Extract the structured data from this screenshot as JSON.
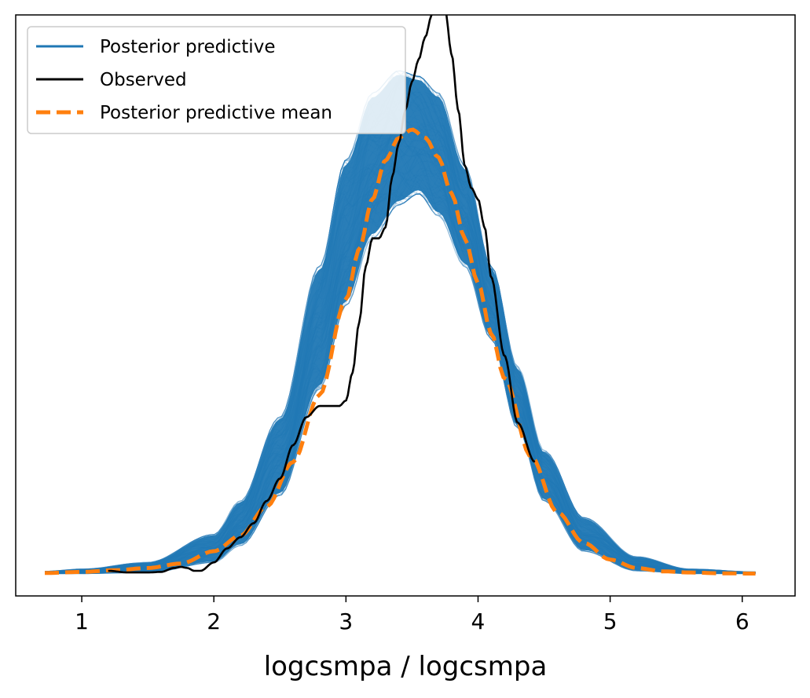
{
  "chart_data": {
    "type": "line",
    "title": "",
    "xlabel": "logcsmpa / logcsmpa",
    "ylabel": "",
    "xlim": [
      0.5,
      6.4
    ],
    "ylim": [
      -0.04,
      1.0
    ],
    "xticks": [
      "1",
      "2",
      "3",
      "4",
      "5",
      "6"
    ],
    "xtick_values": [
      1,
      2,
      3,
      4,
      5,
      6
    ],
    "yticks_visible": false,
    "grid": false,
    "legend_position": "top-left",
    "series": [
      {
        "name": "Posterior predictive",
        "color": "#1f77b4",
        "style": "many semi-transparent sample curves",
        "sample_count": 100,
        "envelope": {
          "x": [
            0.72,
            1.0,
            1.5,
            2.0,
            2.2,
            2.5,
            2.8,
            3.0,
            3.2,
            3.4,
            3.55,
            3.7,
            3.9,
            4.1,
            4.3,
            4.5,
            4.8,
            5.2,
            5.6,
            6.1
          ],
          "lower": [
            0.0,
            0.0,
            0.002,
            0.02,
            0.05,
            0.14,
            0.33,
            0.48,
            0.6,
            0.66,
            0.68,
            0.64,
            0.55,
            0.42,
            0.26,
            0.13,
            0.04,
            0.005,
            0.0,
            0.0
          ],
          "upper": [
            0.004,
            0.008,
            0.02,
            0.07,
            0.13,
            0.28,
            0.55,
            0.74,
            0.86,
            0.9,
            0.89,
            0.86,
            0.73,
            0.55,
            0.37,
            0.22,
            0.1,
            0.03,
            0.008,
            0.003
          ]
        }
      },
      {
        "name": "Observed",
        "color": "#000000",
        "x": [
          1.2,
          1.35,
          1.5,
          1.6,
          1.7,
          1.75,
          1.8,
          1.85,
          1.9,
          2.0,
          2.1,
          2.2,
          2.3,
          2.4,
          2.5,
          2.6,
          2.7,
          2.8,
          2.9,
          2.95,
          3.0,
          3.05,
          3.1,
          3.15,
          3.2,
          3.25,
          3.3,
          3.35,
          3.4,
          3.45,
          3.5,
          3.55,
          3.6,
          3.65,
          3.7,
          3.75,
          3.8,
          3.85,
          3.9,
          3.95,
          4.0,
          4.05,
          4.1,
          4.2,
          4.3,
          4.43
        ],
        "values": [
          0.005,
          0.002,
          0.002,
          0.003,
          0.01,
          0.012,
          0.01,
          0.005,
          0.005,
          0.02,
          0.045,
          0.065,
          0.09,
          0.13,
          0.17,
          0.23,
          0.28,
          0.3,
          0.3,
          0.3,
          0.31,
          0.36,
          0.45,
          0.55,
          0.6,
          0.6,
          0.62,
          0.71,
          0.77,
          0.83,
          0.88,
          0.92,
          0.96,
          1.0,
          1.03,
          1.01,
          0.93,
          0.83,
          0.73,
          0.69,
          0.67,
          0.62,
          0.53,
          0.39,
          0.27,
          0.2
        ]
      },
      {
        "name": "Posterior predictive mean",
        "color": "#ff7f0e",
        "style": "dashed",
        "x": [
          0.72,
          1.0,
          1.25,
          1.5,
          1.75,
          2.0,
          2.2,
          2.4,
          2.6,
          2.8,
          3.0,
          3.1,
          3.2,
          3.3,
          3.4,
          3.5,
          3.6,
          3.7,
          3.8,
          3.9,
          4.0,
          4.1,
          4.2,
          4.4,
          4.6,
          4.8,
          5.0,
          5.2,
          5.4,
          5.6,
          5.85,
          6.1
        ],
        "values": [
          0.001,
          0.003,
          0.006,
          0.01,
          0.018,
          0.04,
          0.068,
          0.12,
          0.2,
          0.32,
          0.49,
          0.58,
          0.67,
          0.74,
          0.78,
          0.795,
          0.78,
          0.745,
          0.68,
          0.6,
          0.52,
          0.43,
          0.35,
          0.21,
          0.11,
          0.055,
          0.025,
          0.01,
          0.004,
          0.002,
          0.0005,
          0.0
        ]
      }
    ]
  }
}
